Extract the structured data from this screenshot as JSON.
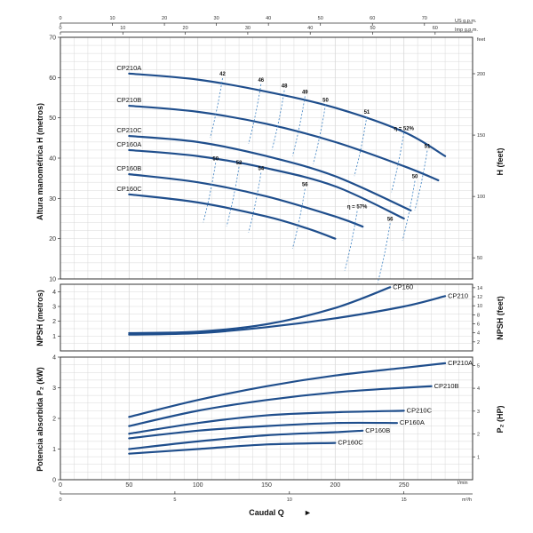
{
  "colors": {
    "curve": "#1f4e8c",
    "efficiency": "#3a7fc1",
    "grid": "#d9d9d9",
    "frame": "#333333"
  },
  "top_axes": {
    "us_unit": "US g.p.m.",
    "imp_unit": "Imp g.p.m.",
    "us_ticks": [
      "0",
      "10",
      "20",
      "30",
      "40",
      "50",
      "60",
      "70"
    ],
    "imp_ticks": [
      "0",
      "10",
      "20",
      "30",
      "40",
      "50",
      "60"
    ]
  },
  "bottom_axes": {
    "lmin_unit": "l/min",
    "m3h_unit": "m³/h",
    "lmin_ticks": [
      "0",
      "50",
      "100",
      "150",
      "200",
      "250"
    ],
    "m3h_ticks": [
      "0",
      "5",
      "10",
      "15"
    ],
    "xlabel": "Caudal Q"
  },
  "chart_data": [
    {
      "type": "line",
      "name": "head",
      "ylabel": "Altura manométrica H (metros)",
      "ylabel_right": "H (feet)",
      "right_unit": "feet",
      "xlim": [
        0,
        300
      ],
      "ylim": [
        10,
        70
      ],
      "yticks": [
        "10",
        "20",
        "30",
        "40",
        "50",
        "60",
        "70"
      ],
      "right_ticks": [
        "50",
        "100",
        "150",
        "200"
      ],
      "series": [
        {
          "name": "CP210A",
          "x": [
            50,
            100,
            150,
            200,
            250,
            280
          ],
          "y": [
            61,
            59.5,
            56.5,
            52.5,
            46.5,
            40.5
          ]
        },
        {
          "name": "CP210B",
          "x": [
            50,
            100,
            150,
            200,
            250,
            275
          ],
          "y": [
            53,
            51.5,
            48.5,
            44,
            38,
            34.5
          ]
        },
        {
          "name": "CP210C",
          "x": [
            50,
            100,
            150,
            200,
            255
          ],
          "y": [
            45.5,
            44,
            40.5,
            35.5,
            27
          ]
        },
        {
          "name": "CP160A",
          "x": [
            50,
            100,
            150,
            200,
            250
          ],
          "y": [
            42,
            40.5,
            37.5,
            33,
            25
          ]
        },
        {
          "name": "CP160B",
          "x": [
            50,
            100,
            150,
            200,
            220
          ],
          "y": [
            36,
            34,
            30.5,
            25.5,
            23
          ]
        },
        {
          "name": "CP160C",
          "x": [
            50,
            100,
            150,
            180,
            200
          ],
          "y": [
            31,
            29,
            25.5,
            22.5,
            20
          ]
        }
      ],
      "efficiency_labels": [
        {
          "text": "42",
          "x": 118,
          "y": 60.5
        },
        {
          "text": "46",
          "x": 146,
          "y": 59
        },
        {
          "text": "48",
          "x": 163,
          "y": 57.5
        },
        {
          "text": "49",
          "x": 178,
          "y": 56
        },
        {
          "text": "50",
          "x": 193,
          "y": 54
        },
        {
          "text": "51",
          "x": 223,
          "y": 51
        },
        {
          "text": "η = 52%",
          "x": 250,
          "y": 47
        },
        {
          "text": "51",
          "x": 267,
          "y": 42.5
        },
        {
          "text": "50",
          "x": 258,
          "y": 35
        },
        {
          "text": "50",
          "x": 113,
          "y": 39.5
        },
        {
          "text": "52",
          "x": 130,
          "y": 38.5
        },
        {
          "text": "54",
          "x": 146,
          "y": 37
        },
        {
          "text": "56",
          "x": 178,
          "y": 33
        },
        {
          "text": "η = 57%",
          "x": 216,
          "y": 27.5
        },
        {
          "text": "56",
          "x": 240,
          "y": 24.5
        }
      ]
    },
    {
      "type": "line",
      "name": "npsh",
      "ylabel": "NPSH (metros)",
      "ylabel_right": "NPSH (feet)",
      "xlim": [
        0,
        300
      ],
      "ylim": [
        0,
        4.5
      ],
      "yticks": [
        "1",
        "2",
        "3",
        "4"
      ],
      "right_ticks": [
        "2",
        "4",
        "6",
        "8",
        "10",
        "12",
        "14"
      ],
      "series": [
        {
          "name": "CP160",
          "x": [
            50,
            100,
            150,
            200,
            240
          ],
          "y": [
            1.2,
            1.3,
            1.8,
            2.9,
            4.3
          ]
        },
        {
          "name": "CP210",
          "x": [
            50,
            100,
            150,
            200,
            250,
            280
          ],
          "y": [
            1.1,
            1.2,
            1.6,
            2.2,
            3.0,
            3.7
          ]
        }
      ]
    },
    {
      "type": "line",
      "name": "power",
      "ylabel": "Potencia absorbida P₂ (kW)",
      "ylabel_right": "P₂ (HP)",
      "xlim": [
        0,
        300
      ],
      "ylim": [
        0,
        4
      ],
      "yticks": [
        "0",
        "1",
        "2",
        "3",
        "4"
      ],
      "right_ticks": [
        "1",
        "2",
        "3",
        "4",
        "5"
      ],
      "series": [
        {
          "name": "CP210A",
          "x": [
            50,
            100,
            150,
            200,
            250,
            280
          ],
          "y": [
            2.05,
            2.6,
            3.05,
            3.4,
            3.65,
            3.8
          ]
        },
        {
          "name": "CP210B",
          "x": [
            50,
            100,
            150,
            200,
            250,
            270
          ],
          "y": [
            1.75,
            2.25,
            2.6,
            2.85,
            3.0,
            3.05
          ]
        },
        {
          "name": "CP210C",
          "x": [
            50,
            100,
            150,
            200,
            250
          ],
          "y": [
            1.5,
            1.85,
            2.1,
            2.2,
            2.25
          ]
        },
        {
          "name": "CP160A",
          "x": [
            50,
            100,
            150,
            200,
            245
          ],
          "y": [
            1.35,
            1.6,
            1.75,
            1.85,
            1.85
          ]
        },
        {
          "name": "CP160B",
          "x": [
            50,
            100,
            150,
            200,
            220
          ],
          "y": [
            1.0,
            1.25,
            1.45,
            1.55,
            1.6
          ]
        },
        {
          "name": "CP160C",
          "x": [
            50,
            100,
            150,
            200
          ],
          "y": [
            0.85,
            1.0,
            1.15,
            1.2
          ]
        }
      ]
    }
  ]
}
